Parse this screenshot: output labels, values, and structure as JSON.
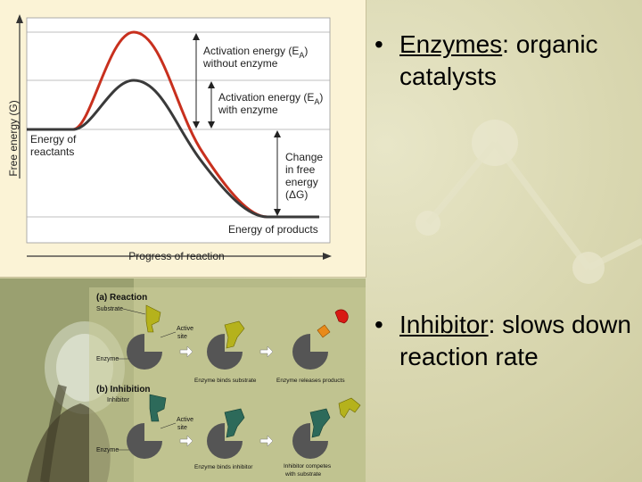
{
  "energy_diagram": {
    "y_axis_label": "Free energy (G)",
    "x_axis_label": "Progress of reaction",
    "ea_without": [
      "Activation energy (E",
      "A",
      ")",
      "without enzyme"
    ],
    "ea_with": [
      "Activation energy (E",
      "A",
      ")",
      "with enzyme"
    ],
    "reactants": [
      "Energy of",
      "reactants"
    ],
    "delta_g": [
      "Change",
      "in free",
      "energy",
      "(ΔG)"
    ],
    "products": "Energy of products",
    "colors": {
      "without_enzyme": "#c8301e",
      "with_enzyme": "#3a3a3a"
    }
  },
  "enzyme_diagram": {
    "a_title": "(a) Reaction",
    "substrate": "Substrate",
    "active_site_1": [
      "Active",
      "site"
    ],
    "enzyme_1": "Enzyme",
    "binds_substrate": "Enzyme binds substrate",
    "releases_products": "Enzyme releases products",
    "b_title": "(b) Inhibition",
    "inhibitor": "Inhibitor",
    "active_site_2": [
      "Active",
      "site"
    ],
    "enzyme_2": "Enzyme",
    "binds_inhibitor": "Enzyme binds inhibitor",
    "competes": [
      "Inhibitor competes",
      "with substrate"
    ]
  },
  "bullets": {
    "b1_bullet": "•",
    "b1_term": "Enzymes",
    "b1_rest": ": organic catalysts",
    "b2_bullet": "•",
    "b2_term": "Inhibitor",
    "b2_rest": ":  slows down reaction rate"
  }
}
